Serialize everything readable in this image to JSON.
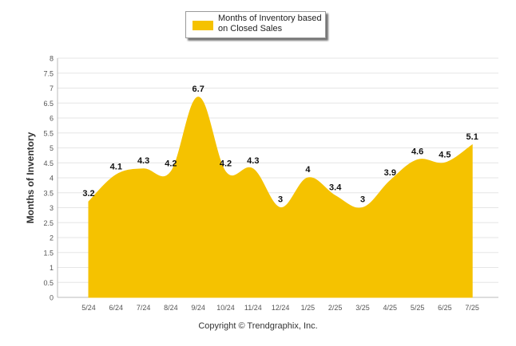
{
  "chart_data": {
    "type": "area",
    "ylabel": "Months of Inventory",
    "xlabel": "",
    "ylim": [
      0,
      8
    ],
    "ytick_step": 0.5,
    "grid": true,
    "legend_position": "top-center",
    "categories": [
      "5/24",
      "6/24",
      "7/24",
      "8/24",
      "9/24",
      "10/24",
      "11/24",
      "12/24",
      "1/25",
      "2/25",
      "3/25",
      "4/25",
      "5/25",
      "6/25",
      "7/25"
    ],
    "series": [
      {
        "name": "Months of Inventory based on Closed Sales",
        "color": "#f5c200",
        "values": [
          3.2,
          4.1,
          4.3,
          4.2,
          6.7,
          4.2,
          4.3,
          3,
          4,
          3.4,
          3,
          3.9,
          4.6,
          4.5,
          5.1
        ]
      }
    ]
  },
  "footer": "Copyright © Trendgraphix, Inc."
}
